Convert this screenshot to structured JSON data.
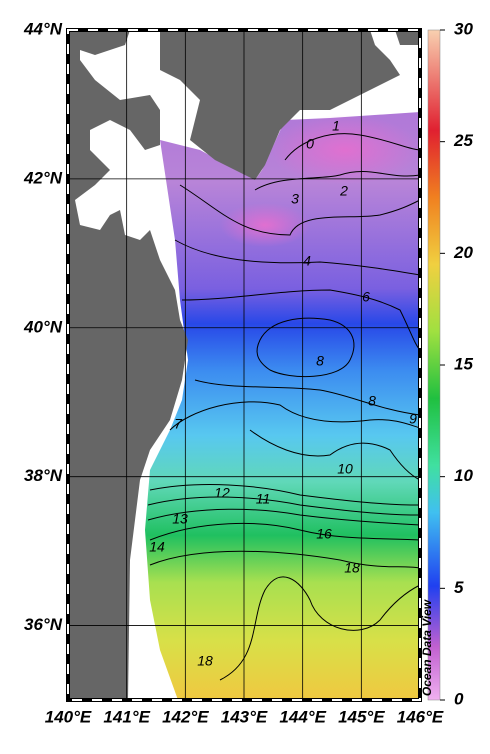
{
  "map": {
    "xlim": [
      140,
      146
    ],
    "ylim": [
      35,
      44
    ],
    "xticks": [
      {
        "value": 140,
        "label": "140°E"
      },
      {
        "value": 141,
        "label": "141°E"
      },
      {
        "value": 142,
        "label": "142°E"
      },
      {
        "value": 143,
        "label": "143°E"
      },
      {
        "value": 144,
        "label": "144°E"
      },
      {
        "value": 145,
        "label": "145°E"
      },
      {
        "value": 146,
        "label": "146°E"
      }
    ],
    "yticks": [
      {
        "value": 44,
        "label": "44°N"
      },
      {
        "value": 42,
        "label": "42°N"
      },
      {
        "value": 40,
        "label": "40°N"
      },
      {
        "value": 38,
        "label": "38°N"
      },
      {
        "value": 36,
        "label": "36°N"
      }
    ],
    "colorbar": {
      "range": [
        0,
        30
      ],
      "ticks": [
        0,
        5,
        10,
        15,
        20,
        25,
        30
      ]
    },
    "contour_labels": [
      "0",
      "1",
      "2",
      "3",
      "4",
      "6",
      "8",
      "8",
      "9",
      "10",
      "7",
      "12",
      "11",
      "13",
      "14",
      "16",
      "18",
      "18"
    ],
    "watermark": "Ocean Data View"
  }
}
